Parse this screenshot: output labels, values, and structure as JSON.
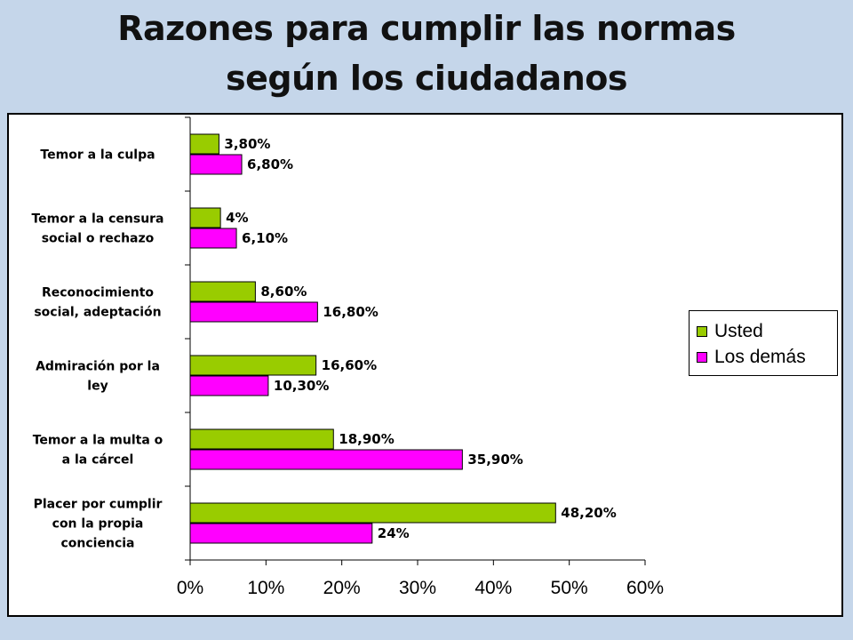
{
  "title": {
    "line1": "Razones para cumplir las normas",
    "line2": "según los ciudadanos"
  },
  "chart_data": {
    "type": "bar",
    "orientation": "horizontal",
    "categories": [
      [
        "Temor a la culpa"
      ],
      [
        "Temor a la censura",
        "social o rechazo"
      ],
      [
        "Reconocimiento",
        "social, adeptación"
      ],
      [
        "Admiración por la",
        "ley"
      ],
      [
        "Temor a la multa o",
        "a la cárcel"
      ],
      [
        "Placer por cumplir",
        "con la propia",
        "conciencia"
      ]
    ],
    "series": [
      {
        "name": "Usted",
        "color": "#99cc00",
        "values": [
          3.8,
          4.0,
          8.6,
          16.6,
          18.9,
          48.2
        ],
        "labels": [
          "3,80%",
          "4%",
          "8,60%",
          "16,60%",
          "18,90%",
          "48,20%"
        ]
      },
      {
        "name": "Los demás",
        "color": "#ff00ff",
        "values": [
          6.8,
          6.1,
          16.8,
          10.3,
          35.9,
          24.0
        ],
        "labels": [
          "6,80%",
          "6,10%",
          "16,80%",
          "10,30%",
          "35,90%",
          "24%"
        ]
      }
    ],
    "xlim": [
      0,
      60
    ],
    "x_ticks": [
      0,
      10,
      20,
      30,
      40,
      50,
      60
    ],
    "x_tick_labels": [
      "0%",
      "10%",
      "20%",
      "30%",
      "40%",
      "50%",
      "60%"
    ],
    "grid": false,
    "legend_position": "right"
  }
}
